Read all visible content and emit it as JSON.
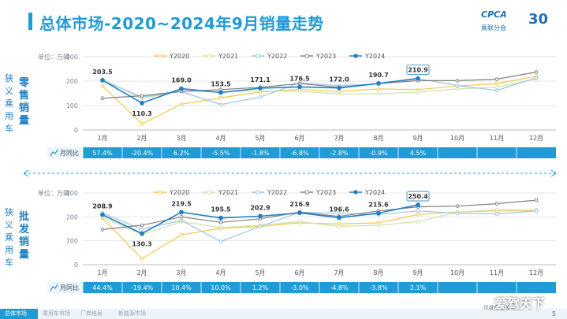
{
  "header": {
    "title": "总体市场-2020~2024年9月销量走势",
    "logo_text": "CPCA",
    "logo_sub": "乘联分会",
    "logo_anniv": "30"
  },
  "colors": {
    "Y2020": "#f2c94c",
    "Y2021": "#cfe3a8",
    "Y2022": "#9cc3e6",
    "Y2023": "#7f7f7f",
    "Y2024": "#1f7fc4",
    "table_bg": "#1f9bd6",
    "accent": "#1f9bd6"
  },
  "chart_data": [
    {
      "type": "line",
      "side_label": "狭义乘用车零售销量",
      "unit": "单位：万辆",
      "ylim": [
        0,
        300
      ],
      "yticks": [
        0,
        100,
        200,
        300
      ],
      "categories": [
        "1月",
        "2月",
        "3月",
        "4月",
        "5月",
        "6月",
        "7月",
        "8月",
        "9月",
        "10月",
        "11月",
        "12月"
      ],
      "series": [
        {
          "name": "Y2020",
          "values": [
            180,
            25,
            105,
            132,
            155,
            166,
            158,
            168,
            165,
            180,
            190,
            220
          ]
        },
        {
          "name": "Y2021",
          "values": [
            208,
            128,
            160,
            155,
            160,
            158,
            148,
            148,
            155,
            168,
            175,
            210
          ]
        },
        {
          "name": "Y2022",
          "values": [
            203,
            135,
            157,
            104,
            135,
            193,
            182,
            188,
            210,
            182,
            162,
            214
          ]
        },
        {
          "name": "Y2023",
          "values": [
            130,
            140,
            158,
            165,
            175,
            190,
            175,
            190,
            202,
            202,
            208,
            237
          ]
        },
        {
          "name": "Y2024",
          "values": [
            203.5,
            110.3,
            169.0,
            153.5,
            171.1,
            176.5,
            172.0,
            190.7,
            210.9,
            null,
            null,
            null
          ]
        }
      ],
      "data_labels": [
        "203.5",
        "110.3",
        "169.0",
        "153.5",
        "171.1",
        "176.5",
        "172.0",
        "190.7",
        "210.9"
      ],
      "table_label": "月同比",
      "yoy": [
        "57.4%",
        "-20.4%",
        "6.2%",
        "-5.5%",
        "-1.8%",
        "-6.8%",
        "-2.8%",
        "-0.9%",
        "4.5%",
        "",
        "",
        ""
      ]
    },
    {
      "type": "line",
      "side_label": "狭义乘用车批发销量",
      "unit": "单位：万辆",
      "ylim": [
        0,
        300
      ],
      "yticks": [
        0,
        100,
        200,
        300
      ],
      "categories": [
        "1月",
        "2月",
        "3月",
        "4月",
        "5月",
        "6月",
        "7月",
        "8月",
        "9月",
        "10月",
        "11月",
        "12月"
      ],
      "series": [
        {
          "name": "Y2020",
          "values": [
            195,
            25,
            125,
            152,
            160,
            175,
            170,
            175,
            210,
            220,
            225,
            225
          ]
        },
        {
          "name": "Y2021",
          "values": [
            200,
            125,
            180,
            155,
            165,
            180,
            160,
            165,
            180,
            220,
            230,
            230
          ]
        },
        {
          "name": "Y2022",
          "values": [
            216,
            148,
            185,
            97,
            160,
            220,
            215,
            210,
            225,
            215,
            212,
            225
          ]
        },
        {
          "name": "Y2023",
          "values": [
            147,
            165,
            200,
            177,
            192,
            220,
            202,
            225,
            242,
            245,
            255,
            270
          ]
        },
        {
          "name": "Y2024",
          "values": [
            208.9,
            130.3,
            219.5,
            195.5,
            202.9,
            216.9,
            196.6,
            215.6,
            250.4,
            null,
            null,
            null
          ]
        }
      ],
      "data_labels": [
        "208.9",
        "130.3",
        "219.5",
        "195.5",
        "202.9",
        "216.9",
        "196.6",
        "215.6",
        "250.4"
      ],
      "table_label": "月同比",
      "yoy": [
        "44.4%",
        "-19.4%",
        "10.4%",
        "10.0%",
        "1.2%",
        "-3.0%",
        "-4.8%",
        "-3.8%",
        "2.1%",
        "",
        "",
        ""
      ]
    }
  ],
  "footer": {
    "tabs": [
      "总体市场",
      "乘用车市场",
      "厂商格局",
      "新能源市场"
    ],
    "page": "5",
    "publisher": "月度信息发布",
    "watermark": "爱驾天下"
  }
}
